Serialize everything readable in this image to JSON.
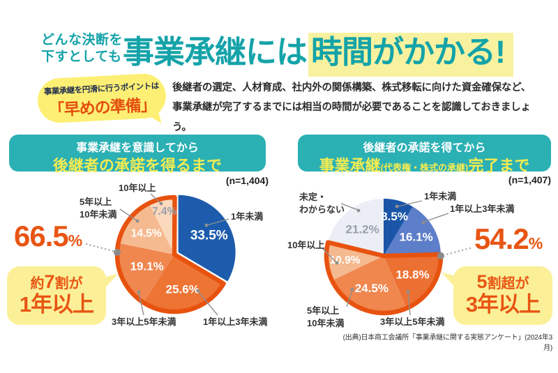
{
  "header": {
    "pre_line1": "どんな決断を",
    "pre_line2": "下すとしても",
    "title_plain": "事業承継には",
    "title_highlight": "時間がかかる!",
    "accent_teal": "#14a3a9",
    "highlight_yellow": "#f8f2a0"
  },
  "intro": {
    "bubble_small": "事業承継を円滑に行うポイントは",
    "bubble_big": "「早めの準備」",
    "body_line1": "後継者の選定、人材育成、社内外の関係構築、株式移転に向けた資金確保など、",
    "body_line2": "事業承継が完了するまでには相当の時間が必要であることを認識しておきましょう。"
  },
  "charts": {
    "left": {
      "title_line1": "事業承継を意識してから",
      "title_line2": "後継者の承諾を得るまで"
    },
    "right": {
      "title_line1": "後継者の承諾を得てから",
      "title_line2_big1": "事業承継",
      "title_line2_small": "(代表権・株式の承継)",
      "title_line2_big2": "完了まで"
    }
  },
  "chart_data": [
    {
      "type": "pie",
      "title": "事業承継を意識してから後継者の承諾を得るまで",
      "n_label": "(n=1,404)",
      "labels": [
        "1年未満",
        "1年以上3年未満",
        "3年以上5年未満",
        "5年以上10年未満",
        "10年以上"
      ],
      "labels_display": [
        [
          "1年未満"
        ],
        [
          "1年以上3年未満"
        ],
        [
          "3年以上5年未満"
        ],
        [
          "5年以上",
          "10年未満"
        ],
        [
          "10年以上"
        ]
      ],
      "values": [
        33.5,
        25.6,
        19.1,
        14.5,
        7.4
      ],
      "colors": [
        "#1d5cad",
        "#ee7434",
        "#f0874f",
        "#f6ba90",
        "#fbd9bc"
      ],
      "value_label_colors": [
        "#ffffff",
        "#ffffff",
        "#ffffff",
        "#ffffff",
        "#99a0ac"
      ],
      "highlight_group": {
        "label": "1年以上",
        "indices": [
          1,
          2,
          3,
          4
        ],
        "total_percent": 66.5,
        "outline_color": "#e8520f"
      },
      "callout": {
        "value": "66.5",
        "unit": "%",
        "note_pre": "約",
        "note_big": "7",
        "note_post": "割が",
        "note_line2": "1年以上"
      }
    },
    {
      "type": "pie",
      "title": "後継者の承諾を得てから事業承継(代表権・株式の承継)完了まで",
      "n_label": "(n=1,407)",
      "labels": [
        "1年未満",
        "1年以上3年未満",
        "3年以上5年未満",
        "5年以上10年未満",
        "10年以上",
        "未定・わからない"
      ],
      "labels_display": [
        [
          "1年未満"
        ],
        [
          "1年以上3年未満"
        ],
        [
          "3年以上5年未満"
        ],
        [
          "5年以上",
          "10年未満"
        ],
        [
          "10年以上"
        ],
        [
          "未定・",
          "わからない"
        ]
      ],
      "values": [
        8.5,
        16.1,
        18.8,
        24.5,
        10.9,
        21.2
      ],
      "colors": [
        "#1a55a8",
        "#5d7ec8",
        "#ed7033",
        "#f0874f",
        "#f5b98f",
        "#eceef6"
      ],
      "value_label_colors": [
        "#ffffff",
        "#ffffff",
        "#ffffff",
        "#ffffff",
        "#ffffff",
        "#99a0ac"
      ],
      "highlight_group": {
        "label": "3年以上",
        "indices": [
          2,
          3,
          4
        ],
        "total_percent": 54.2,
        "outline_color": "#e8520f"
      },
      "callout": {
        "value": "54.2",
        "unit": "%",
        "note_pre": "",
        "note_big": "5",
        "note_post": "割超が",
        "note_line2": "3年以上"
      }
    }
  ],
  "footer": {
    "source": "(出典)日本商工会議所「事業承継に関する実態アンケート」(2024年3月)"
  }
}
